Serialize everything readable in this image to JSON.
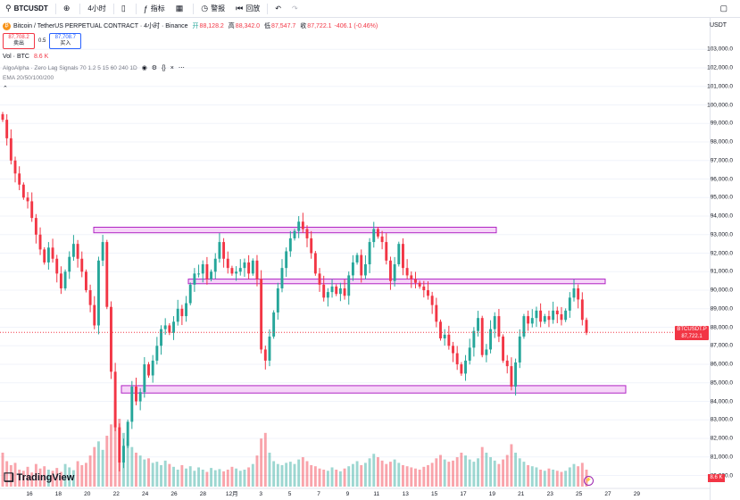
{
  "toolbar": {
    "symbol": "BTCUSDT",
    "interval": "4小时",
    "indicators": "指标",
    "alert": "警报",
    "replay": "回放"
  },
  "legend": {
    "title": "Bitcoin / TetherUS PERPETUAL CONTRACT · 4小时 · Binance",
    "open_label": "开",
    "open": "88,128.2",
    "high_label": "高",
    "high": "88,342.0",
    "low_label": "低",
    "low": "87,547.7",
    "close_label": "收",
    "close": "87,722.1",
    "change": "-406.1 (-0.46%)",
    "sell_price": "87,708.2",
    "sell_label": "卖出",
    "spread": "0.5",
    "buy_price": "87,708.7",
    "buy_label": "买入",
    "vol_label": "Vol · BTC",
    "vol_value": "8.6 K",
    "ind1": "AlgoAlpha · Zero Lag Signals 70 1.2 5 15 60 240 1D",
    "ind2": "EMA 20/50/100/200"
  },
  "axis": {
    "currency": "USDT"
  },
  "price_tag": {
    "symbol": "BTCUSDT.P",
    "price": "87,722.1",
    "countdown": "01:53:07"
  },
  "vol_tag": "8.6 K",
  "brand": "TradingView",
  "colors": {
    "up": "#26a69a",
    "down": "#f23645",
    "zone_fill": "#f3c7f5",
    "zone_stroke": "#b024c4",
    "price_line": "#f23645"
  },
  "chart_data": {
    "type": "candlestick",
    "y_ticks": [
      "103,000.0",
      "102,000.0",
      "101,000.0",
      "100,000.0",
      "99,000.0",
      "98,000.0",
      "97,000.0",
      "96,000.0",
      "95,000.0",
      "94,000.0",
      "93,000.0",
      "92,000.0",
      "91,000.0",
      "90,000.0",
      "89,000.0",
      "88,000.0",
      "87,000.0",
      "86,000.0",
      "85,000.0",
      "84,000.0",
      "83,000.0",
      "82,000.0",
      "81,000.0",
      "80,000.0"
    ],
    "y_tick_values": [
      103000,
      102000,
      101000,
      100000,
      99000,
      98000,
      97000,
      96000,
      95000,
      94000,
      93000,
      92000,
      91000,
      90000,
      89000,
      88000,
      87000,
      86000,
      85000,
      84000,
      83000,
      82000,
      81000,
      80000
    ],
    "x_ticks": [
      "16",
      "18",
      "20",
      "22",
      "24",
      "26",
      "28",
      "12月",
      "3",
      "5",
      "7",
      "9",
      "11",
      "13",
      "15",
      "17",
      "19",
      "21",
      "23",
      "25",
      "27",
      "29"
    ],
    "ylim": [
      79400,
      104700
    ],
    "last_price": 87722.1,
    "zones": [
      {
        "from": 93100,
        "to": 93400
      },
      {
        "from": 90350,
        "to": 90600
      },
      {
        "from": 84450,
        "to": 84850
      }
    ],
    "closes": [
      99200,
      98200,
      97000,
      96300,
      95700,
      95000,
      94800,
      93900,
      93000,
      92200,
      91500,
      92300,
      91700,
      90900,
      90100,
      91000,
      91800,
      92500,
      91700,
      91000,
      90000,
      89200,
      88100,
      91600,
      92600,
      89100,
      85600,
      82600,
      80700,
      81600,
      82900,
      84800,
      84000,
      84500,
      86000,
      85400,
      86200,
      87000,
      87900,
      88100,
      87700,
      88300,
      89000,
      88600,
      89300,
      90300,
      90900,
      90900,
      91400,
      90600,
      91000,
      91700,
      92600,
      91700,
      91200,
      90900,
      91000,
      91200,
      91500,
      90900,
      91600,
      90600,
      86800,
      86200,
      87500,
      88800,
      90100,
      91200,
      92100,
      92800,
      93200,
      93700,
      93300,
      92800,
      92000,
      90900,
      90300,
      89600,
      89900,
      90200,
      89800,
      90100,
      89700,
      90800,
      91500,
      91900,
      90800,
      91400,
      92600,
      93300,
      92900,
      92600,
      91600,
      90500,
      91400,
      92500,
      91200,
      90800,
      90600,
      90400,
      90200,
      90000,
      89700,
      89200,
      88300,
      87400,
      87600,
      87000,
      86600,
      86000,
      85500,
      86200,
      86900,
      87800,
      88500,
      86500,
      86800,
      87900,
      88600,
      87500,
      86200,
      85900,
      84800,
      86100,
      87500,
      88600,
      88200,
      88500,
      88900,
      88300,
      88600,
      88400,
      88900,
      88700,
      88400,
      88900,
      89600,
      90100,
      89500,
      88400,
      87700
    ],
    "volumes": [
      60,
      45,
      38,
      42,
      30,
      28,
      35,
      25,
      40,
      32,
      36,
      30,
      28,
      33,
      26,
      40,
      34,
      29,
      45,
      38,
      42,
      55,
      70,
      80,
      65,
      90,
      110,
      150,
      120,
      95,
      80,
      70,
      60,
      55,
      48,
      50,
      42,
      44,
      38,
      46,
      40,
      35,
      30,
      38,
      32,
      36,
      28,
      34,
      30,
      26,
      33,
      29,
      31,
      27,
      30,
      35,
      32,
      28,
      30,
      34,
      40,
      55,
      85,
      95,
      60,
      45,
      40,
      38,
      42,
      44,
      40,
      48,
      52,
      45,
      38,
      36,
      32,
      30,
      28,
      34,
      30,
      27,
      32,
      36,
      40,
      45,
      38,
      42,
      50,
      58,
      52,
      46,
      40,
      44,
      48,
      42,
      38,
      36,
      34,
      32,
      30,
      35,
      38,
      42,
      50,
      56,
      48,
      44,
      46,
      52,
      60,
      55,
      48,
      44,
      50,
      70,
      60,
      52,
      46,
      40,
      48,
      56,
      75,
      60,
      50,
      44,
      38,
      36,
      34,
      30,
      28,
      32,
      30,
      28,
      26,
      28,
      34,
      40,
      36,
      42,
      30
    ]
  }
}
